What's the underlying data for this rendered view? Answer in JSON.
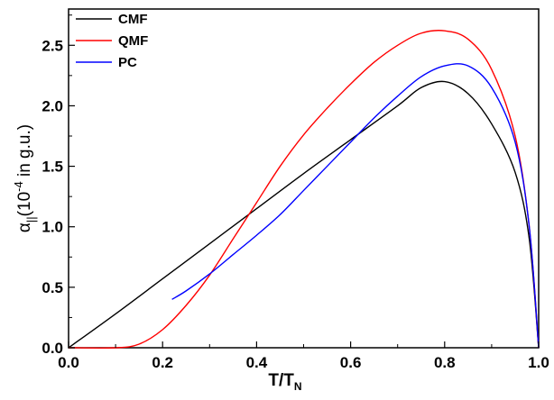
{
  "chart_data": {
    "type": "line",
    "title": "",
    "xlabel": "T/T",
    "xlabel_sub": "N",
    "ylabel_main": "α",
    "ylabel_sub": "||",
    "ylabel_paren_open": "(10",
    "ylabel_sup": "-4",
    "ylabel_units": " in g.u.)",
    "xlim": [
      0.0,
      1.0
    ],
    "ylim": [
      0.0,
      2.8
    ],
    "xticks": [
      "0.0",
      "0.2",
      "0.4",
      "0.6",
      "0.8",
      "1.0"
    ],
    "yticks": [
      "0.0",
      "0.5",
      "1.0",
      "1.5",
      "2.0",
      "2.5"
    ],
    "grid": false,
    "legend_position": "top-left",
    "series": [
      {
        "name": "CMF",
        "color": "#000000",
        "x": [
          0.0,
          0.1,
          0.2,
          0.3,
          0.4,
          0.5,
          0.6,
          0.7,
          0.75,
          0.8,
          0.85,
          0.9,
          0.95,
          0.98,
          1.0
        ],
        "y": [
          0.0,
          0.28,
          0.57,
          0.86,
          1.15,
          1.44,
          1.72,
          2.0,
          2.15,
          2.2,
          2.1,
          1.85,
          1.45,
          0.9,
          0.0
        ]
      },
      {
        "name": "QMF",
        "color": "#ff0000",
        "x": [
          0.0,
          0.1,
          0.15,
          0.2,
          0.25,
          0.3,
          0.35,
          0.4,
          0.45,
          0.5,
          0.55,
          0.6,
          0.65,
          0.7,
          0.75,
          0.8,
          0.85,
          0.9,
          0.95,
          0.98,
          1.0
        ],
        "y": [
          0.0,
          0.0,
          0.03,
          0.15,
          0.35,
          0.6,
          0.9,
          1.2,
          1.5,
          1.76,
          1.98,
          2.18,
          2.36,
          2.5,
          2.6,
          2.62,
          2.55,
          2.3,
          1.75,
          1.0,
          0.0
        ]
      },
      {
        "name": "PC",
        "color": "#0000ff",
        "x": [
          0.22,
          0.25,
          0.3,
          0.35,
          0.4,
          0.45,
          0.5,
          0.55,
          0.6,
          0.65,
          0.7,
          0.75,
          0.8,
          0.85,
          0.9,
          0.95,
          0.98,
          1.0
        ],
        "y": [
          0.4,
          0.47,
          0.61,
          0.77,
          0.93,
          1.1,
          1.3,
          1.5,
          1.7,
          1.9,
          2.08,
          2.24,
          2.33,
          2.33,
          2.15,
          1.7,
          1.0,
          0.0
        ]
      }
    ]
  }
}
